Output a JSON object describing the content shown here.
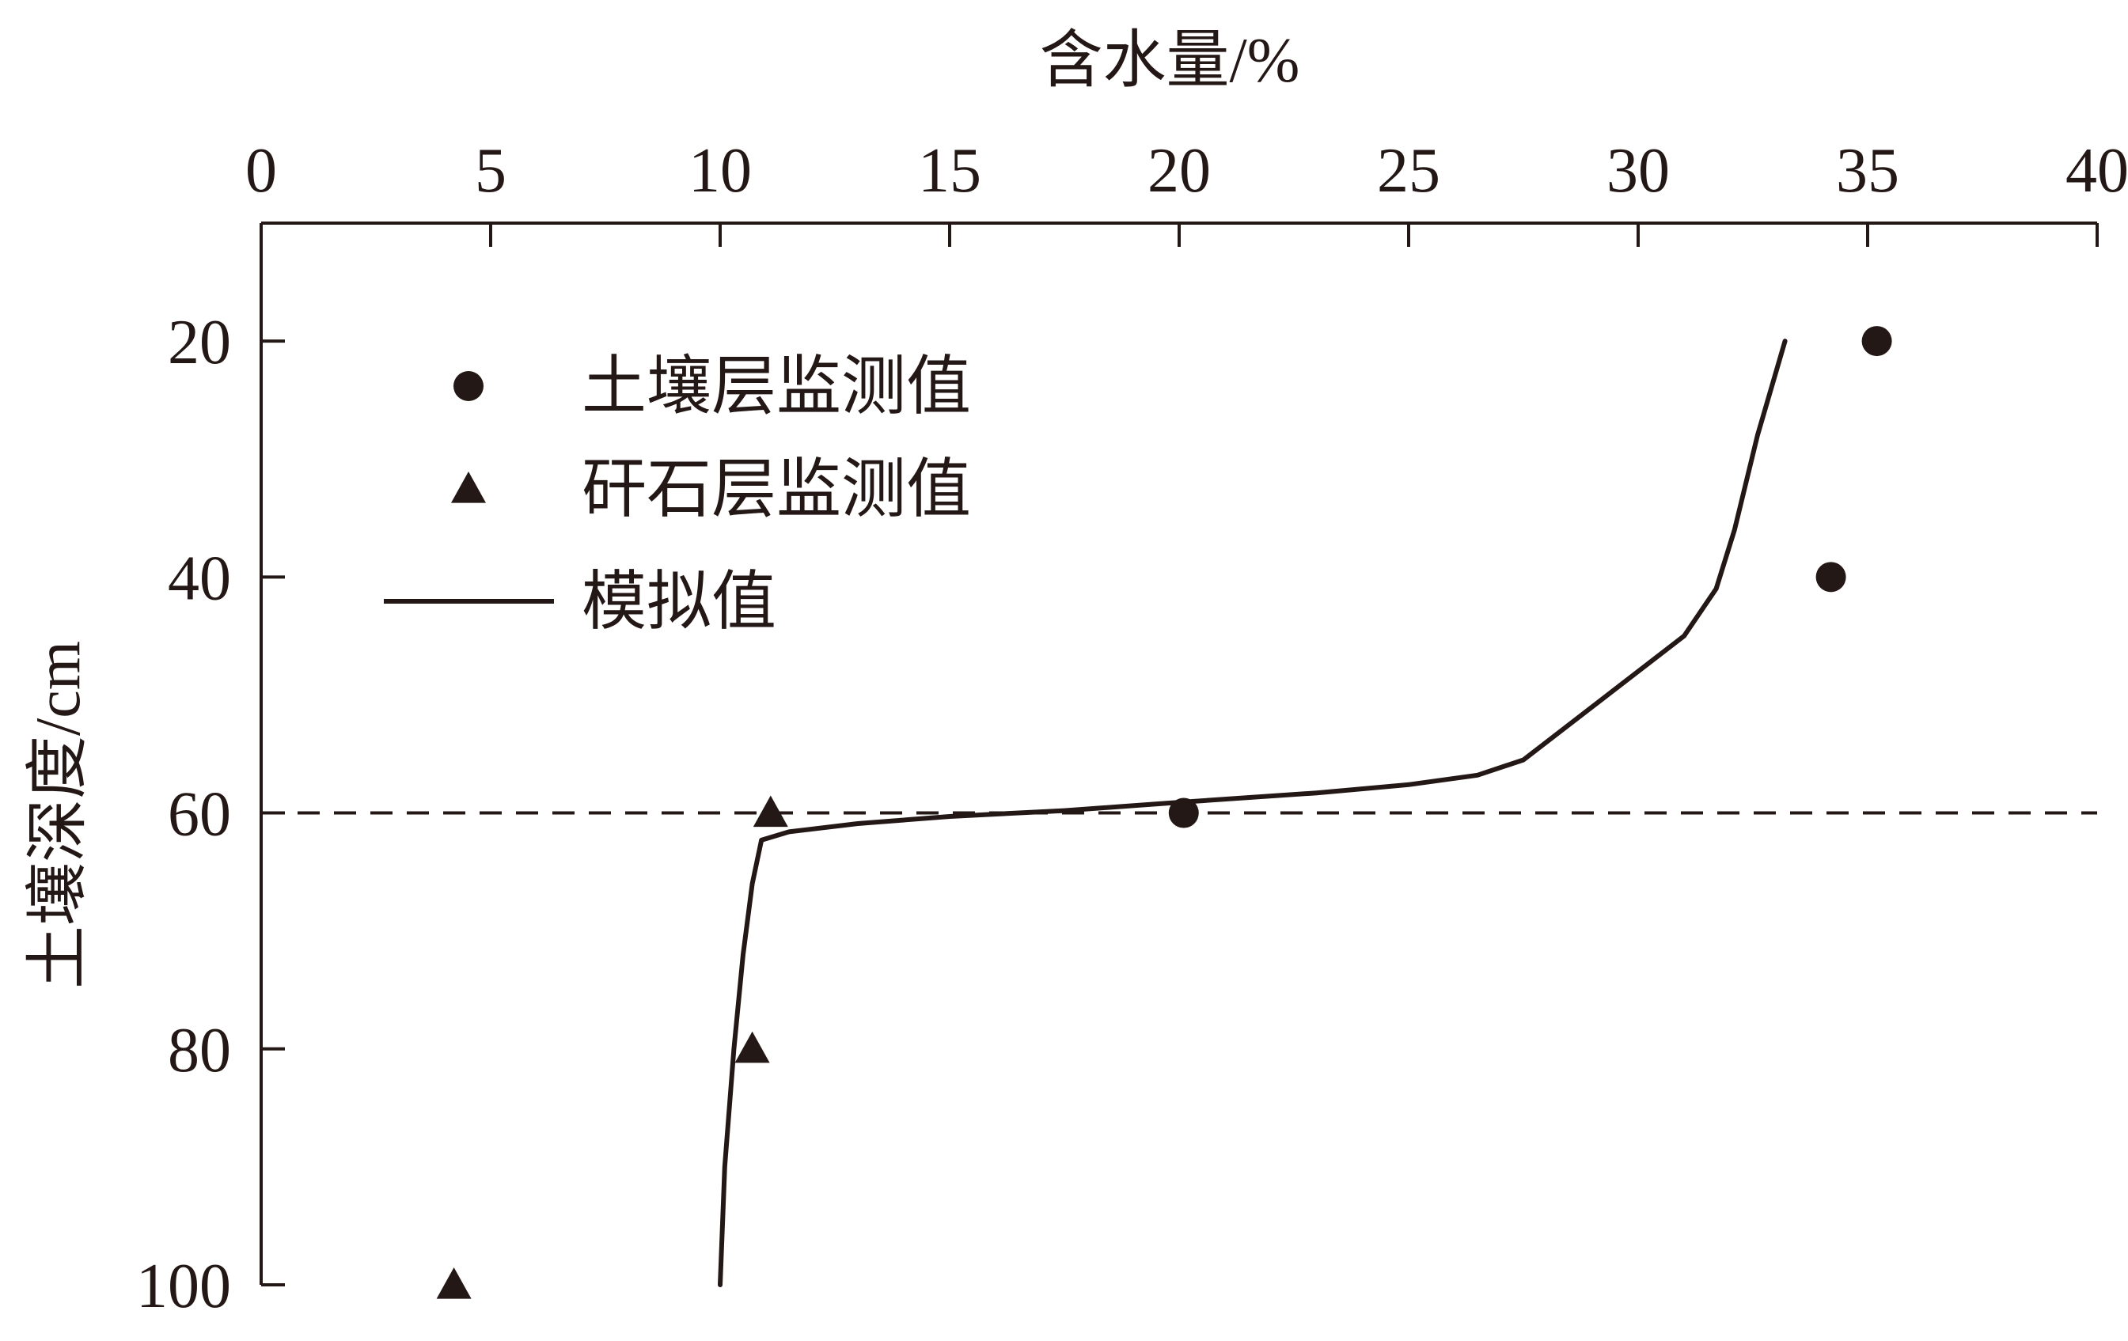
{
  "chart_data": {
    "type": "scatter",
    "xlabel": "含水量/%",
    "ylabel": "土壤深度/cm",
    "x_axis_position": "top",
    "y_axis_inverted": true,
    "xlim": [
      0,
      40
    ],
    "ylim": [
      10,
      100
    ],
    "x_ticks": [
      0,
      5,
      10,
      15,
      20,
      25,
      30,
      35,
      40
    ],
    "y_ticks": [
      20,
      40,
      60,
      80,
      100
    ],
    "grid": false,
    "legend_position": "upper-left",
    "reference_line": {
      "y": 60,
      "style": "dashed"
    },
    "series": [
      {
        "name": "土壤层监测值",
        "marker": "circle",
        "points": [
          {
            "x": 35.2,
            "y": 20
          },
          {
            "x": 34.2,
            "y": 40
          },
          {
            "x": 20.1,
            "y": 60
          }
        ]
      },
      {
        "name": "矸石层监测值",
        "marker": "triangle",
        "points": [
          {
            "x": 11.1,
            "y": 60
          },
          {
            "x": 10.7,
            "y": 80
          },
          {
            "x": 4.2,
            "y": 100
          }
        ]
      },
      {
        "name": "模拟值",
        "marker": "line",
        "points": [
          {
            "x": 33.2,
            "y": 20
          },
          {
            "x": 32.6,
            "y": 28
          },
          {
            "x": 32.1,
            "y": 36
          },
          {
            "x": 31.7,
            "y": 41
          },
          {
            "x": 31.0,
            "y": 45
          },
          {
            "x": 30.0,
            "y": 48
          },
          {
            "x": 29.0,
            "y": 51
          },
          {
            "x": 28.0,
            "y": 54
          },
          {
            "x": 27.5,
            "y": 55.5
          },
          {
            "x": 26.5,
            "y": 56.8
          },
          {
            "x": 25.0,
            "y": 57.6
          },
          {
            "x": 23.0,
            "y": 58.3
          },
          {
            "x": 20.0,
            "y": 59.1
          },
          {
            "x": 17.5,
            "y": 59.8
          },
          {
            "x": 15.0,
            "y": 60.3
          },
          {
            "x": 13.0,
            "y": 60.9
          },
          {
            "x": 11.5,
            "y": 61.6
          },
          {
            "x": 10.9,
            "y": 62.3
          },
          {
            "x": 10.7,
            "y": 66
          },
          {
            "x": 10.5,
            "y": 72
          },
          {
            "x": 10.3,
            "y": 80
          },
          {
            "x": 10.1,
            "y": 90
          },
          {
            "x": 10.0,
            "y": 100
          }
        ]
      }
    ]
  },
  "colors": {
    "ink": "#231815",
    "background": "#ffffff"
  }
}
